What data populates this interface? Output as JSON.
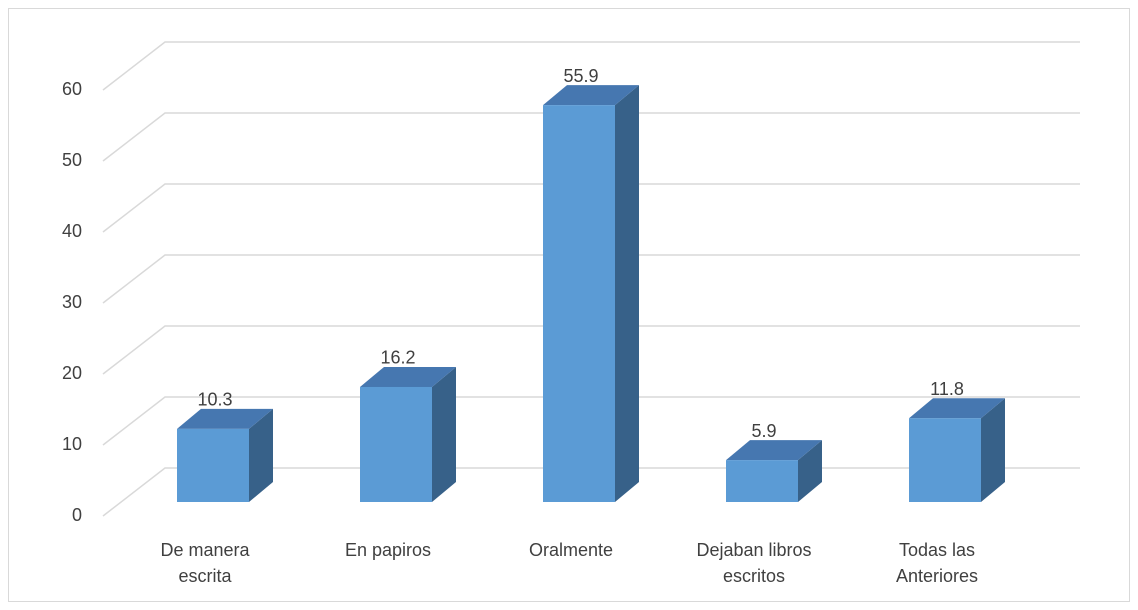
{
  "chart_data": {
    "type": "bar3d",
    "categories": [
      "De manera escrita",
      "En papiros",
      "Oralmente",
      "Dejaban libros escritos",
      "Todas las Anteriores"
    ],
    "values": [
      10.3,
      16.2,
      55.9,
      5.9,
      11.8
    ],
    "color": "#5b9bd5",
    "ylim": [
      0,
      60
    ],
    "yticks": [
      0,
      10,
      20,
      30,
      40,
      50,
      60
    ],
    "grid": true
  }
}
